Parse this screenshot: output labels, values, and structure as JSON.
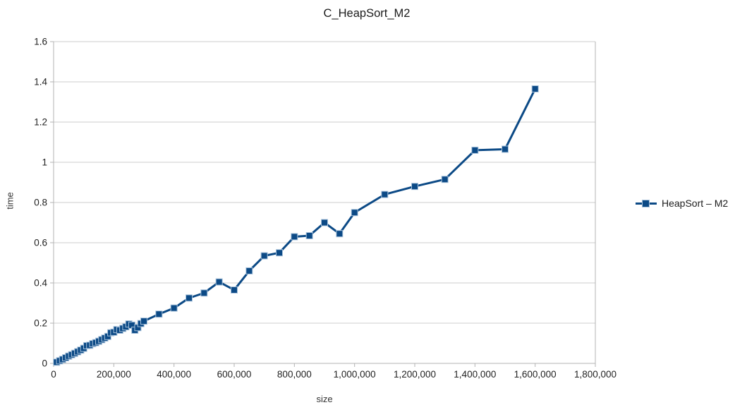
{
  "title": "C_HeapSort_M2",
  "legend": {
    "label": "HeapSort – M2"
  },
  "colors": {
    "series": "#0c4a86",
    "marker_border": "#a9c3dc",
    "gridline": "#cdcdcd",
    "axis_line": "#b3b3b3",
    "text": "#222222"
  },
  "chart_data": {
    "type": "line",
    "title": "C_HeapSort_M2",
    "xlabel": "size",
    "ylabel": "time",
    "xlim": [
      0,
      1800000
    ],
    "ylim": [
      0,
      1.6
    ],
    "grid": "horizontal",
    "legend_position": "right",
    "marker": "square",
    "x_ticks": {
      "values": [
        0,
        200000,
        400000,
        600000,
        800000,
        1000000,
        1200000,
        1400000,
        1600000,
        1800000
      ],
      "labels": [
        "0",
        "200,000",
        "400,000",
        "600,000",
        "800,000",
        "1,000,000",
        "1,200,000",
        "1,400,000",
        "1,600,000",
        "1,800,000"
      ]
    },
    "y_ticks": {
      "values": [
        0,
        0.2,
        0.4,
        0.6,
        0.8,
        1.0,
        1.2,
        1.4,
        1.6
      ],
      "labels": [
        "0",
        "0.2",
        "0.4",
        "0.6",
        "0.8",
        "1",
        "1.2",
        "1.4",
        "1.6"
      ]
    },
    "series": [
      {
        "name": "HeapSort – M2",
        "x": [
          10000,
          20000,
          30000,
          40000,
          50000,
          60000,
          70000,
          80000,
          90000,
          100000,
          110000,
          120000,
          130000,
          140000,
          150000,
          160000,
          170000,
          180000,
          190000,
          200000,
          210000,
          220000,
          230000,
          240000,
          250000,
          260000,
          270000,
          280000,
          290000,
          300000,
          350000,
          400000,
          450000,
          500000,
          550000,
          600000,
          650000,
          700000,
          750000,
          800000,
          850000,
          900000,
          950000,
          1000000,
          1100000,
          1200000,
          1300000,
          1400000,
          1500000,
          1600000
        ],
        "y": [
          0.006,
          0.013,
          0.02,
          0.028,
          0.036,
          0.043,
          0.05,
          0.058,
          0.066,
          0.075,
          0.088,
          0.09,
          0.098,
          0.103,
          0.11,
          0.118,
          0.126,
          0.134,
          0.152,
          0.155,
          0.168,
          0.165,
          0.174,
          0.182,
          0.196,
          0.19,
          0.165,
          0.178,
          0.198,
          0.21,
          0.245,
          0.275,
          0.325,
          0.35,
          0.405,
          0.365,
          0.46,
          0.535,
          0.55,
          0.63,
          0.635,
          0.7,
          0.645,
          0.75,
          0.84,
          0.88,
          0.915,
          1.06,
          1.065,
          1.365
        ]
      }
    ]
  }
}
